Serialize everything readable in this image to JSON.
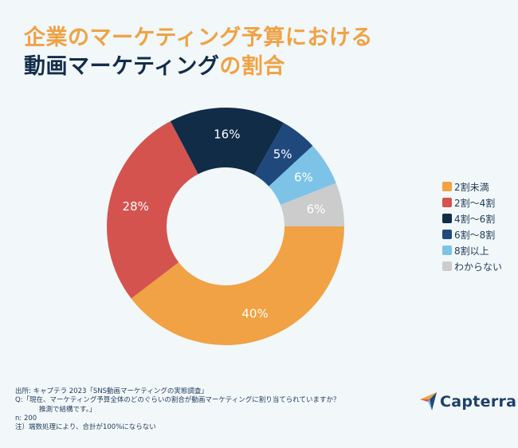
{
  "title": {
    "line1": "企業のマーケティング予算における",
    "line2_navy": "動画マーケティング",
    "line2_orange": "の割合"
  },
  "chart_data": {
    "type": "pie",
    "subtype": "donut",
    "title": "企業のマーケティング予算における動画マーケティングの割合",
    "start": "east",
    "direction": "clockwise",
    "legend_position": "right",
    "categories": [
      "2割未満",
      "2割〜4割",
      "4割〜6割",
      "6割〜8割",
      "8割以上",
      "わからない"
    ],
    "values": [
      40,
      28,
      16,
      5,
      6,
      6
    ],
    "labels": [
      "40%",
      "28%",
      "16%",
      "5%",
      "6%",
      "6%"
    ],
    "colors": [
      "#f0a244",
      "#d5534f",
      "#102c47",
      "#1f497c",
      "#7dc3e8",
      "#cccccc"
    ]
  },
  "footer": {
    "source": "出所: キャプテラ 2023「SNS動画マーケティングの実態調査」",
    "question_line1": "Q:「現在、マーケティング予算全体のどのぐらいの割合が動画マーケティングに割り当てられていますか？",
    "question_line2": "推測で結構です。」",
    "n": "n: 200",
    "note": "注）端数処理により、合計が100%にならない"
  },
  "logo": {
    "name": "Capterra",
    "icon": "capterra-arrow-icon"
  }
}
